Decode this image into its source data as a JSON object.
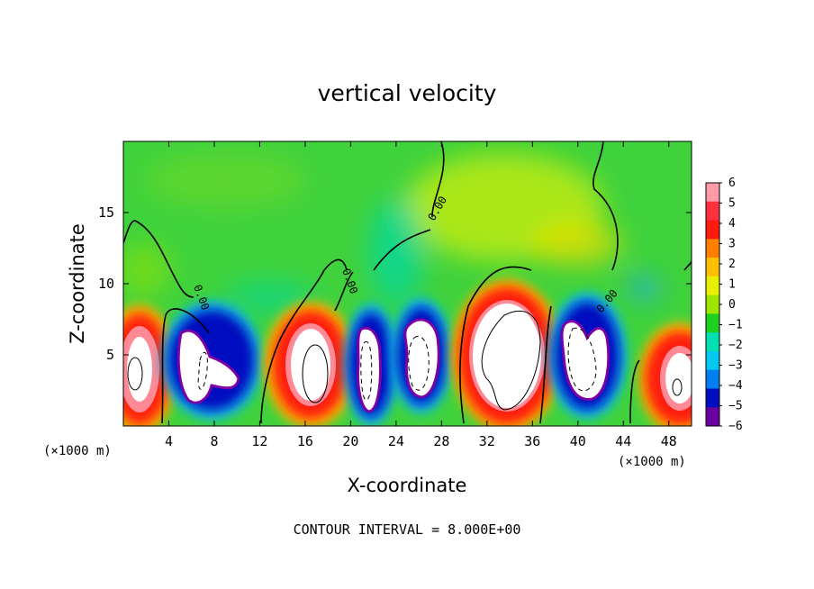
{
  "chart_data": {
    "type": "heatmap",
    "title": "vertical velocity",
    "xlabel": "X-coordinate",
    "ylabel": "Z-coordinate",
    "x_unit_label": "(×1000 m)",
    "xlim": [
      0,
      50
    ],
    "ylim": [
      0,
      20
    ],
    "x_ticks": [
      4,
      8,
      12,
      16,
      20,
      24,
      28,
      32,
      36,
      40,
      44,
      48
    ],
    "y_ticks": [
      5,
      10,
      15
    ],
    "colorbar": {
      "ticks": [
        6,
        5,
        4,
        3,
        2,
        1,
        0,
        -1,
        -2,
        -3,
        -4,
        -5,
        -6
      ],
      "colors": [
        "#ff9aa8",
        "#ff3040",
        "#ff1a10",
        "#ff8000",
        "#ffc000",
        "#e8f000",
        "#9ee600",
        "#20d020",
        "#00e0b0",
        "#00c8f0",
        "#0080f0",
        "#0010c0",
        "#6a00a0"
      ]
    },
    "contour_label": "0.00",
    "footer_note": "CONTOUR INTERVAL = 8.000E+00",
    "cells": [
      {
        "x": 2,
        "zmax": 7.8,
        "sign": "up"
      },
      {
        "x": 9,
        "zmax": 8.5,
        "sign": "down"
      },
      {
        "x": 17,
        "zmax": 8.2,
        "sign": "up"
      },
      {
        "x": 22.5,
        "zmax": 8.5,
        "sign": "down"
      },
      {
        "x": 26.5,
        "zmax": 8.2,
        "sign": "down"
      },
      {
        "x": 34,
        "zmax": 10.2,
        "sign": "up"
      },
      {
        "x": 41,
        "zmax": 8.8,
        "sign": "down"
      },
      {
        "x": 48.5,
        "zmax": 7.2,
        "sign": "up"
      }
    ]
  }
}
